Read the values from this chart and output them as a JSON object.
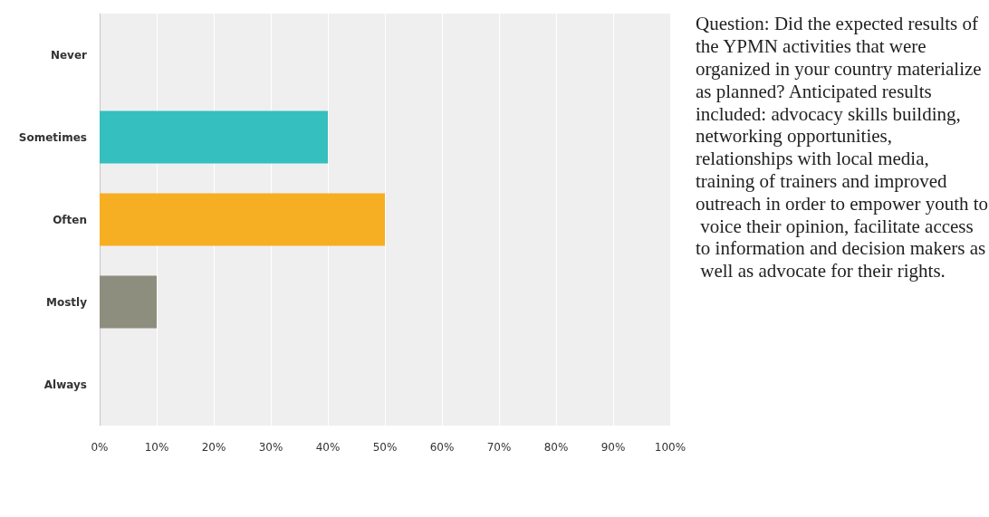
{
  "chart_data": {
    "type": "bar",
    "orientation": "horizontal",
    "categories": [
      "Never",
      "Sometimes",
      "Often",
      "Mostly",
      "Always"
    ],
    "values": [
      0,
      40,
      50,
      10,
      0
    ],
    "colors": [
      "#35bfbf",
      "#35bfbf",
      "#f6ae22",
      "#8e8e7e",
      "#8e8e7e"
    ],
    "xlim": [
      0,
      100
    ],
    "xticks": [
      {
        "value": 0,
        "label": "0%"
      },
      {
        "value": 10,
        "label": "10%"
      },
      {
        "value": 20,
        "label": "20%"
      },
      {
        "value": 30,
        "label": "30%"
      },
      {
        "value": 40,
        "label": "40%"
      },
      {
        "value": 50,
        "label": "50%"
      },
      {
        "value": 60,
        "label": "60%"
      },
      {
        "value": 70,
        "label": "70%"
      },
      {
        "value": 80,
        "label": "80%"
      },
      {
        "value": 90,
        "label": "90%"
      },
      {
        "value": 100,
        "label": "100%"
      }
    ],
    "grid": "x",
    "annotations": [
      "Question: Did the expected results of the YPMN activities that were organized in your country materialize as planned? Anticipated results included: advocacy skills building, networking opportunities, relationships with local media, training of trainers and improved outreach in order to empower youth to voice their opinion, facilitate access to information and decision makers as well as advocate for their rights."
    ]
  }
}
